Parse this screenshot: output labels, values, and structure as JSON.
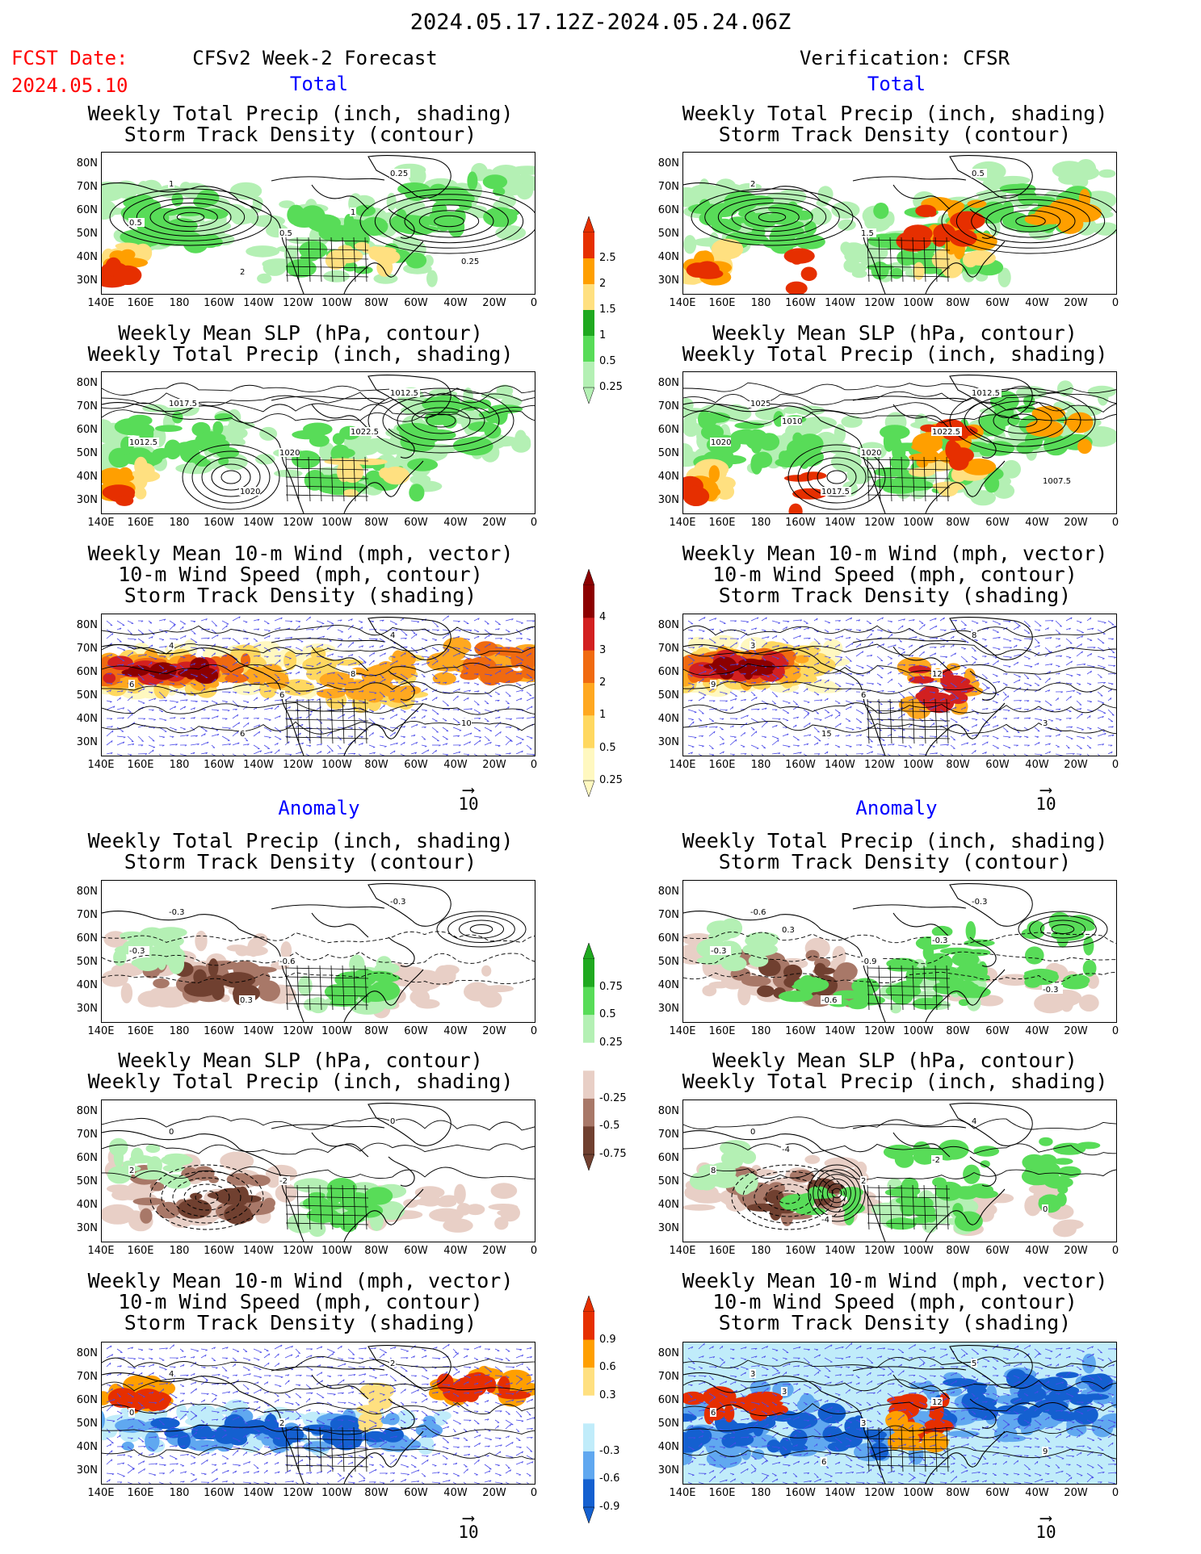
{
  "header": {
    "period": "2024.05.17.12Z-2024.05.24.06Z",
    "fcst_label": "FCST Date:",
    "fcst_date": "2024.05.10",
    "left_title": "CFSv2 Week-2 Forecast",
    "right_title": "Verification: CFSR"
  },
  "sections": {
    "total": "Total",
    "anomaly": "Anomaly"
  },
  "panel_titles": {
    "precip_storm": "Weekly Total Precip (inch, shading)\nStorm Track Density (contour)",
    "slp_precip": "Weekly Mean SLP (hPa, contour)\nWeekly Total Precip (inch, shading)",
    "wind_storm": "Weekly Mean 10-m Wind (mph, vector)\n10-m Wind Speed (mph, contour)\nStorm Track Density (shading)"
  },
  "axes": {
    "lat_labels": [
      "80N",
      "70N",
      "60N",
      "50N",
      "40N",
      "30N"
    ],
    "lon_labels": [
      "140E",
      "160E",
      "180",
      "160W",
      "140W",
      "120W",
      "100W",
      "80W",
      "60W",
      "40W",
      "20W",
      "0"
    ]
  },
  "vector_ref": "10",
  "colorbars": {
    "precip_total": {
      "ticks": [
        "2.5",
        "2",
        "1.5",
        "1",
        "0.5",
        "0.25"
      ],
      "colors": [
        "#e62f00",
        "#ff9f00",
        "#ffe080",
        "#1fa91f",
        "#58dc58",
        "#b4f0b4"
      ]
    },
    "storm_total": {
      "ticks": [
        "4",
        "3",
        "2",
        "1",
        "0.5",
        "0.25"
      ],
      "colors": [
        "#8c0000",
        "#d22020",
        "#f06a10",
        "#ffa820",
        "#ffd860",
        "#fff8c0"
      ]
    },
    "precip_anom": {
      "ticks": [
        "0.75",
        "0.5",
        "0.25",
        "-0.25",
        "-0.5",
        "-0.75"
      ],
      "colors": [
        "#1fa91f",
        "#58dc58",
        "#b4f0b4",
        "#ffffff",
        "#e8cfc6",
        "#a87868",
        "#704030"
      ]
    },
    "storm_anom": {
      "ticks": [
        "0.9",
        "0.6",
        "0.3",
        "-0.3",
        "-0.6",
        "-0.9"
      ],
      "colors": [
        "#e62f00",
        "#ff9f00",
        "#ffe080",
        "#ffffff",
        "#c0ecfa",
        "#60a8f0",
        "#1460d0"
      ]
    },
    "shading_colors": {
      "green_light": "#b4f0b4",
      "green_mid": "#58dc58",
      "green_dark": "#1fa91f",
      "yellow": "#ffe080",
      "orange": "#ff9f00",
      "red": "#e62f00",
      "brown_light": "#e8cfc6",
      "brown_mid": "#a87868",
      "brown_dark": "#704030",
      "blue_light": "#c0ecfa",
      "blue_mid": "#60a8f0",
      "blue_dark": "#1460d0",
      "vector_blue": "#4a4ae8"
    }
  },
  "contour_labels": {
    "fc_total_precip": [
      "1",
      "0.5",
      "0.25",
      "0.5",
      "2",
      "1",
      "0.25"
    ],
    "vf_total_precip": [
      "2",
      "1.5",
      "0.5"
    ],
    "fc_total_slp": [
      "1017.5",
      "1020",
      "1012.5",
      "1012.5",
      "1020",
      "1022.5"
    ],
    "vf_total_slp": [
      "1025",
      "1020",
      "1012.5",
      "1020",
      "1017.5",
      "1022.5",
      "1007.5",
      "1010"
    ],
    "fc_total_wind": [
      "4",
      "6",
      "4",
      "6",
      "6",
      "8",
      "10"
    ],
    "vf_total_wind": [
      "3",
      "6",
      "8",
      "9",
      "15",
      "12",
      "3"
    ],
    "fc_anom_precip": [
      "-0.3",
      "-0.6",
      "-0.3",
      "-0.3",
      "0.3"
    ],
    "vf_anom_precip": [
      "-0.6",
      "-0.9",
      "-0.3",
      "-0.3",
      "-0.6",
      "-0.3",
      "-0.3",
      "0.3"
    ],
    "fc_anom_slp": [
      "0",
      "-2",
      "0",
      "2"
    ],
    "vf_anom_slp": [
      "0",
      "2",
      "4",
      "8",
      "-4",
      "-2",
      "0",
      "-4"
    ],
    "fc_anom_wind": [
      "4",
      "2",
      "2",
      "0"
    ],
    "vf_anom_wind": [
      "3",
      "3",
      "5",
      "6",
      "6",
      "12",
      "9",
      "3"
    ]
  }
}
